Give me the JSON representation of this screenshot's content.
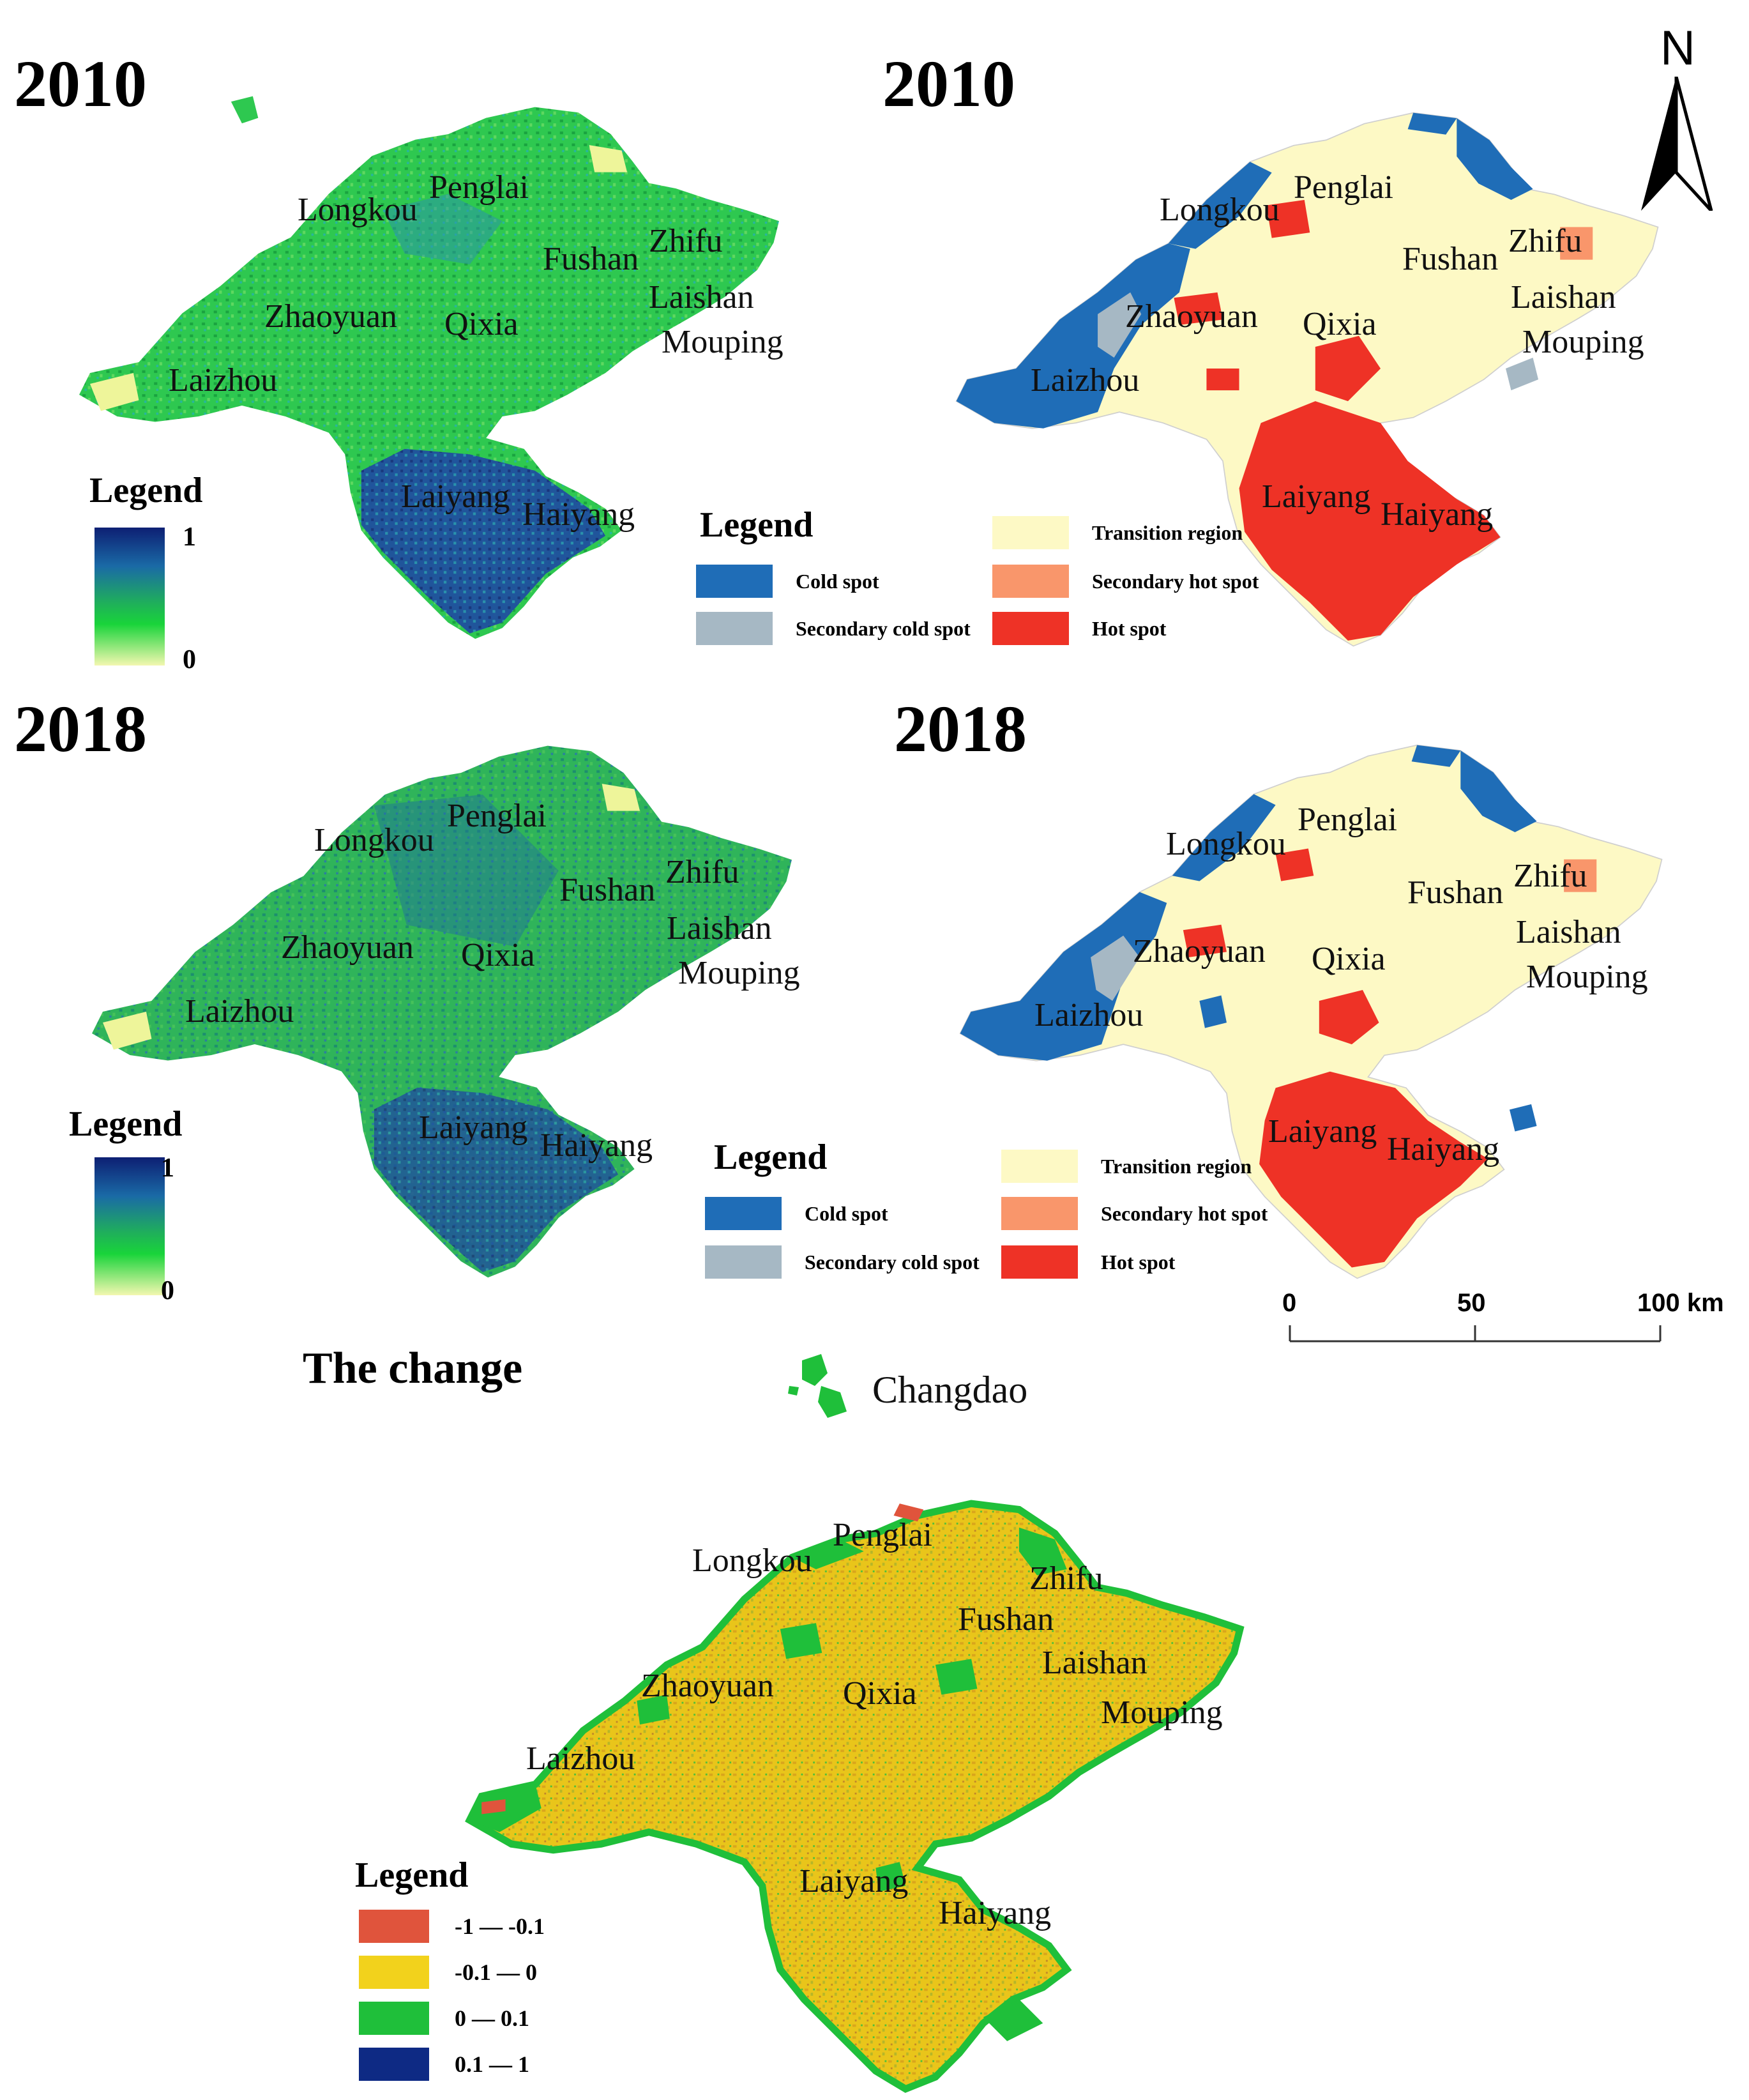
{
  "panels": {
    "p2010_index": {
      "year": "2010"
    },
    "p2010_hotspot": {
      "year": "2010"
    },
    "p2018_index": {
      "year": "2018"
    },
    "p2018_hotspot": {
      "year": "2018"
    },
    "change": {
      "title": "The change",
      "island_label": "Changdao"
    }
  },
  "places": {
    "penglai": "Penglai",
    "longkou": "Longkou",
    "fushan": "Fushan",
    "zhifu": "Zhifu",
    "laishan": "Laishan",
    "zhaoyuan": "Zhaoyuan",
    "qixia": "Qixia",
    "mouping": "Mouping",
    "laizhou": "Laizhou",
    "laiyang": "Laiyang",
    "haiyang": "Haiyang"
  },
  "index_legend": {
    "title": "Legend",
    "max_label": "1",
    "min_label": "0",
    "color_high": "#0d1f73",
    "color_mid": "#1fae3a",
    "color_low": "#f3f7b0"
  },
  "hotspot_legend": {
    "title": "Legend",
    "items": [
      {
        "label": "Cold spot",
        "color": "#1f6db7"
      },
      {
        "label": "Secondary cold spot",
        "color": "#a6b8c4"
      },
      {
        "label": "Transition region",
        "color": "#fdf9c5"
      },
      {
        "label": "Secondary hot spot",
        "color": "#f9966b"
      },
      {
        "label": "Hot spot",
        "color": "#ee3226"
      }
    ]
  },
  "change_legend": {
    "title": "Legend",
    "items": [
      {
        "label": "-1 — -0.1",
        "color": "#e0543c"
      },
      {
        "label": "-0.1 — 0",
        "color": "#f2d21c"
      },
      {
        "label": "0 — 0.1",
        "color": "#1fbf3a"
      },
      {
        "label": "0.1 — 1",
        "color": "#0e2a84"
      }
    ]
  },
  "scale_bar": {
    "ticks": [
      "0",
      "50",
      "100 km"
    ]
  },
  "north_arrow": {
    "letter": "N",
    "icon": "north-arrow-icon"
  }
}
